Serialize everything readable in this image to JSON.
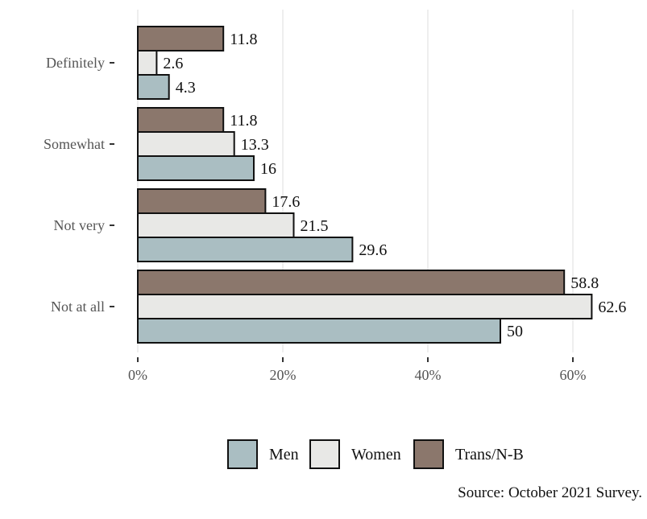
{
  "chart_data": {
    "type": "bar",
    "orientation": "horizontal",
    "categories": [
      "Definitely",
      "Somewhat",
      "Not very",
      "Not at all"
    ],
    "series": [
      {
        "name": "Men",
        "color": "#aabec2",
        "values": [
          4.3,
          16,
          29.6,
          50
        ]
      },
      {
        "name": "Women",
        "color": "#e8e8e6",
        "values": [
          2.6,
          13.3,
          21.5,
          62.6
        ]
      },
      {
        "name": "Trans/N-B",
        "color": "#8b776c",
        "values": [
          11.8,
          11.8,
          17.6,
          58.8
        ]
      }
    ],
    "data_labels": [
      [
        "4.3",
        "16",
        "29.6",
        "50"
      ],
      [
        "2.6",
        "13.3",
        "21.5",
        "62.6"
      ],
      [
        "11.8",
        "11.8",
        "17.6",
        "58.8"
      ]
    ],
    "xticks": [
      0,
      20,
      40,
      60
    ],
    "xtick_labels": [
      "0%",
      "20%",
      "40%",
      "60%"
    ],
    "xlim": [
      0,
      66
    ],
    "grid": "vertical major gridlines",
    "legend": {
      "placement": "bottom",
      "entries": [
        "Men",
        "Women",
        "Trans/N-B"
      ]
    },
    "caption": "Source: October 2021 Survey.",
    "title": "",
    "xlabel": "",
    "ylabel": ""
  }
}
